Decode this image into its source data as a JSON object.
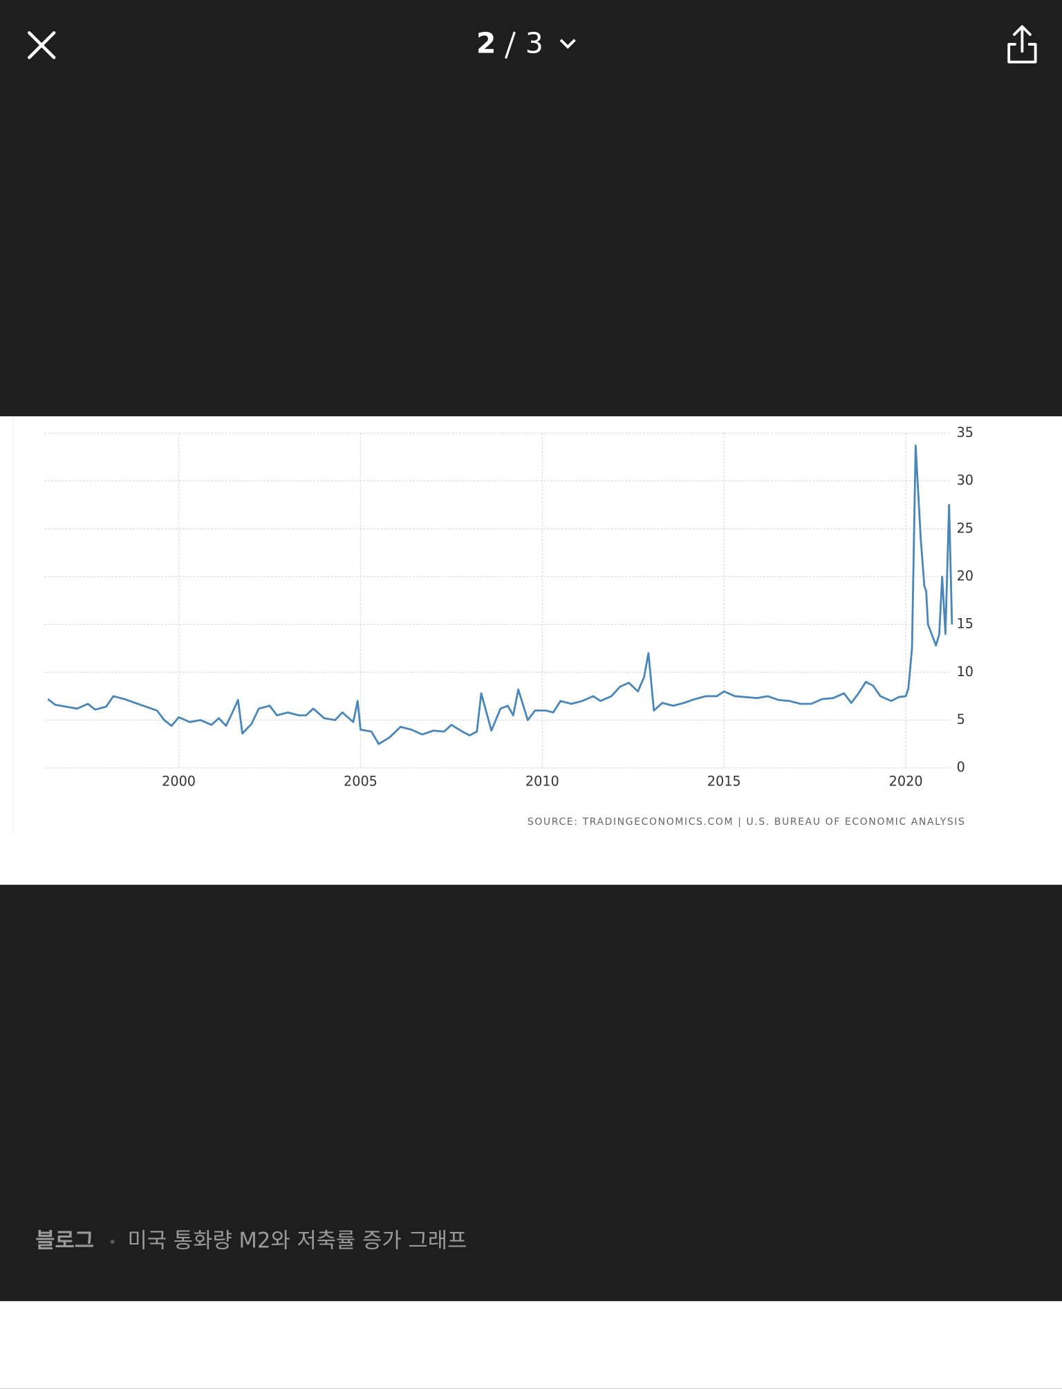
{
  "header": {
    "current": 2,
    "total": 3
  },
  "chart_data": {
    "type": "line",
    "source": "SOURCE: TRADINGECONOMICS.COM | U.S. BUREAU OF ECONOMIC ANALYSIS",
    "x": [
      1996.4,
      1996.6,
      1996.9,
      1997.2,
      1997.5,
      1997.7,
      1998.0,
      1998.2,
      1998.5,
      1998.8,
      1999.1,
      1999.4,
      1999.6,
      1999.8,
      2000.0,
      2000.3,
      2000.6,
      2000.9,
      2001.1,
      2001.3,
      2001.5,
      2001.63,
      2001.75,
      2002.0,
      2002.2,
      2002.5,
      2002.7,
      2003.0,
      2003.3,
      2003.5,
      2003.7,
      2004.0,
      2004.3,
      2004.5,
      2004.8,
      2004.92,
      2005.0,
      2005.3,
      2005.5,
      2005.8,
      2006.1,
      2006.4,
      2006.7,
      2007.0,
      2007.3,
      2007.5,
      2007.8,
      2008.0,
      2008.2,
      2008.32,
      2008.6,
      2008.85,
      2009.05,
      2009.2,
      2009.34,
      2009.6,
      2009.8,
      2010.1,
      2010.3,
      2010.5,
      2010.8,
      2011.1,
      2011.4,
      2011.6,
      2011.9,
      2012.14,
      2012.38,
      2012.63,
      2012.8,
      2012.92,
      2013.07,
      2013.3,
      2013.6,
      2013.9,
      2014.2,
      2014.5,
      2014.8,
      2015.0,
      2015.3,
      2015.6,
      2015.9,
      2016.2,
      2016.5,
      2016.8,
      2017.1,
      2017.4,
      2017.7,
      2018.0,
      2018.3,
      2018.5,
      2018.7,
      2018.9,
      2019.1,
      2019.3,
      2019.6,
      2019.8,
      2020.0,
      2020.07,
      2020.17,
      2020.27,
      2020.41,
      2020.51,
      2020.56,
      2020.61,
      2020.71,
      2020.83,
      2020.92,
      2021.0,
      2021.09,
      2021.19,
      2021.27
    ],
    "series": [
      {
        "color": "#4a86b8",
        "values": [
          7.2,
          6.6,
          6.4,
          6.2,
          6.7,
          6.1,
          6.4,
          7.5,
          7.2,
          6.8,
          6.4,
          6.0,
          5.0,
          4.4,
          5.3,
          4.8,
          5.0,
          4.5,
          5.2,
          4.4,
          6.0,
          7.1,
          3.6,
          4.6,
          6.2,
          6.5,
          5.5,
          5.8,
          5.5,
          5.5,
          6.2,
          5.2,
          5.0,
          5.8,
          4.8,
          7.0,
          4.0,
          3.8,
          2.5,
          3.2,
          4.3,
          4.0,
          3.5,
          3.9,
          3.8,
          4.5,
          3.8,
          3.4,
          3.8,
          7.8,
          3.9,
          6.2,
          6.5,
          5.5,
          8.2,
          5.0,
          6.0,
          6.0,
          5.8,
          7.0,
          6.7,
          7.0,
          7.5,
          7.0,
          7.5,
          8.5,
          8.9,
          8.0,
          9.5,
          12.0,
          6.0,
          6.8,
          6.5,
          6.8,
          7.2,
          7.5,
          7.5,
          8.0,
          7.5,
          7.4,
          7.3,
          7.5,
          7.1,
          7.0,
          6.7,
          6.7,
          7.2,
          7.3,
          7.8,
          6.8,
          7.8,
          9.0,
          8.6,
          7.5,
          7.0,
          7.4,
          7.5,
          8.3,
          12.5,
          33.7,
          24,
          19,
          18.5,
          15,
          14,
          12.8,
          14,
          20,
          14,
          27.5,
          15
        ]
      }
    ],
    "xlim": [
      1996.3,
      2021.3
    ],
    "xticks": [
      2000,
      2005,
      2010,
      2015,
      2020
    ],
    "ylim": [
      0,
      35
    ],
    "yticks": [
      0,
      5,
      10,
      15,
      20,
      25,
      30,
      35
    ],
    "grid": true
  },
  "caption": {
    "source": "블로그",
    "title": "미국 통화량 M2와 저축률 증가 그래프"
  }
}
